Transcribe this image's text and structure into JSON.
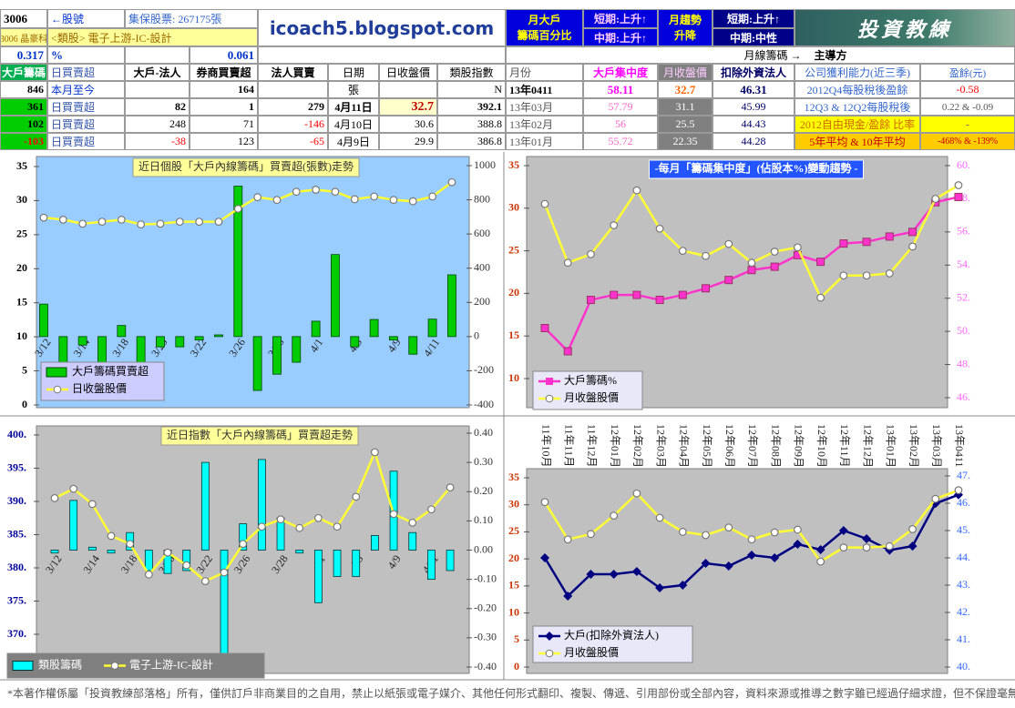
{
  "header": {
    "stock_code": "3006",
    "code_label": "←股號",
    "shares": "集保股票: 267175張",
    "name": "3006 晶豪科",
    "sector": "<類股> 電子上游-IC-設計",
    "pct1": "0.317",
    "pct_unit": "%",
    "pct2": "0.061",
    "site": "icoach5.blogspot.com",
    "monthly_label": [
      "月大戶",
      "籌碼百分比"
    ],
    "short1": "短期:上升↑",
    "mid1": "中期:上升↑",
    "trend_label": [
      "月趨勢",
      "升降"
    ],
    "short2": "短期:上升↑",
    "mid2": "中期:中性",
    "logo": "投資教練",
    "monthly_chip": "月線籌碼 →",
    "leader": "主導方"
  },
  "table": {
    "rows": [
      [
        "大戶籌碼",
        "日買賣超",
        "大戶-法人",
        "券商買賣超",
        "法人買賣",
        "日期",
        "日收盤價",
        "類股指數",
        "月份",
        "大戶集中度",
        "月收盤價",
        "扣除外資法人",
        "公司獲利能力(近三季)",
        "盈餘(元)"
      ],
      [
        "846",
        "本月至今",
        "",
        "164",
        "",
        "張",
        "",
        "N",
        "13年0411",
        "58.11",
        "32.7",
        "46.31",
        "2012Q4每股稅後盈餘",
        "-0.58"
      ],
      [
        "361",
        "日買賣超",
        "82",
        "1",
        "279",
        "4月11日",
        "32.7",
        "392.1",
        "13年03月",
        "57.79",
        "31.1",
        "45.99",
        "12Q3 & 12Q2每股稅後",
        "0.22 & -0.09"
      ],
      [
        "102",
        "日買賣超",
        "248",
        "71",
        "-146",
        "4月10日",
        "30.6",
        "388.8",
        "13年02月",
        "56",
        "25.5",
        "44.43",
        "2012自由現金/盈餘 比率",
        "-"
      ],
      [
        "-103",
        "日買賣超",
        "-38",
        "123",
        "-65",
        "4月9日",
        "29.9",
        "386.8",
        "13年01月",
        "55.72",
        "22.35",
        "44.28",
        "5年平均 & 10年平均",
        "-468% & -139%"
      ]
    ]
  },
  "chart_data": [
    {
      "type": "combo",
      "title": "近日個股「大戶內線籌碼」買賣超(張數)走勢",
      "categories": [
        "3/12",
        null,
        "3/14",
        null,
        "3/18",
        null,
        "3/20",
        null,
        "3/22",
        null,
        "3/26",
        null,
        "3/28",
        null,
        "4/1",
        null,
        "4/3",
        null,
        "4/9",
        null,
        "4/11",
        null
      ],
      "ylim": [
        0,
        35
      ],
      "yticks": [
        0,
        5,
        10,
        15,
        20,
        25,
        30,
        35
      ],
      "y2lim": [
        -400,
        1000
      ],
      "y2ticks": [
        -400,
        -200,
        0,
        200,
        400,
        600,
        800,
        1000
      ],
      "series": [
        {
          "name": "大戶籌碼買賣超",
          "color": "#00cc00",
          "kind": "bar",
          "axis": "y2",
          "values": [
            190,
            -165,
            -50,
            -150,
            65,
            -155,
            -60,
            -60,
            -20,
            10,
            880,
            -315,
            -220,
            -150,
            90,
            480,
            -60,
            100,
            -20,
            -103,
            102,
            361
          ]
        },
        {
          "name": "日收盤股價",
          "color": "#ffff33",
          "kind": "line",
          "marker": "circle",
          "values": [
            27.5,
            27.2,
            26.6,
            26.9,
            27.2,
            26.5,
            26.6,
            26.9,
            26.9,
            26.9,
            28.8,
            30.5,
            30.1,
            31.3,
            31.6,
            31.3,
            30.2,
            30.6,
            30.1,
            29.9,
            30.6,
            32.7
          ]
        }
      ]
    },
    {
      "type": "line",
      "title": "-每月「籌碼集中度」(佔股本%)變動趨勢 -",
      "ylim": [
        10,
        35
      ],
      "yticks": [
        10,
        15,
        20,
        25,
        30,
        35
      ],
      "y2lim": [
        46,
        60
      ],
      "y2ticks": [
        {
          "value": 46,
          "label": "46."
        },
        {
          "value": 48,
          "label": "48."
        },
        {
          "value": 50,
          "label": "50."
        },
        {
          "value": 52,
          "label": "52."
        },
        {
          "value": 54,
          "label": "54."
        },
        {
          "value": 56,
          "label": "56."
        },
        {
          "value": 58,
          "label": "58."
        },
        {
          "value": 60,
          "label": "60."
        }
      ],
      "series": [
        {
          "name": "大戶籌碼%",
          "color": "#ff33cc",
          "kind": "line",
          "marker": "square",
          "axis": "y2",
          "values": [
            50.2,
            48.8,
            51.9,
            52.2,
            52.2,
            51.9,
            52.2,
            52.6,
            53.1,
            53.7,
            53.9,
            54.6,
            54.2,
            55.3,
            55.4,
            55.72,
            56,
            57.79,
            58.11
          ]
        },
        {
          "name": "月收盤股價",
          "color": "#ffff33",
          "kind": "line",
          "marker": "circle",
          "values": [
            30.5,
            23.6,
            24.6,
            28.0,
            32.1,
            27.6,
            25.0,
            24.4,
            25.8,
            23.6,
            24.9,
            25.4,
            19.5,
            22.1,
            22.1,
            22.35,
            25.5,
            31.1,
            32.7
          ]
        }
      ]
    },
    {
      "type": "combo",
      "title": "近日指數「大戶內線籌碼」買賣超走勢",
      "categories": [
        "3/12",
        null,
        "3/14",
        null,
        "3/18",
        null,
        "3/20",
        null,
        "3/22",
        null,
        "3/26",
        null,
        "3/28",
        null,
        "4/1",
        null,
        "4/3",
        null,
        "4/9",
        null,
        "4/11",
        null
      ],
      "ylim": [
        370,
        400
      ],
      "yticks": [
        {
          "value": 370,
          "label": "370."
        },
        {
          "value": 375,
          "label": "375."
        },
        {
          "value": 380,
          "label": "380."
        },
        {
          "value": 385,
          "label": "385."
        },
        {
          "value": 390,
          "label": "390."
        },
        {
          "value": 395,
          "label": "395."
        },
        {
          "value": 400,
          "label": "400."
        }
      ],
      "y2lim": [
        -0.4,
        0.4
      ],
      "y2ticks": [
        {
          "value": -0.4,
          "label": "-0.40"
        },
        {
          "value": -0.3,
          "label": "-0.30"
        },
        {
          "value": -0.2,
          "label": "-0.20"
        },
        {
          "value": -0.1,
          "label": "-0.10"
        },
        {
          "value": 0,
          "label": "0.00"
        },
        {
          "value": 0.1,
          "label": "0.10"
        },
        {
          "value": 0.2,
          "label": "0.20"
        },
        {
          "value": 0.3,
          "label": "0.30"
        },
        {
          "value": 0.4,
          "label": "0.40"
        }
      ],
      "series": [
        {
          "name": "類股籌碼",
          "color": "#00ffff",
          "kind": "bar",
          "axis": "y2",
          "values": [
            -0.01,
            0.17,
            0.01,
            -0.01,
            0.06,
            -0.07,
            -0.08,
            -0.07,
            0.3,
            -0.38,
            0.09,
            0.31,
            0.11,
            -0.01,
            -0.18,
            -0.09,
            -0.09,
            0.05,
            0.27,
            0.06,
            -0.1,
            -0.07
          ]
        },
        {
          "name": "電子上游-IC-設計",
          "color": "#ffff33",
          "kind": "line",
          "marker": "circle",
          "values": [
            390.5,
            391.9,
            389.6,
            384.8,
            383.6,
            379.0,
            382.3,
            380.4,
            378.0,
            379.3,
            383.6,
            386.2,
            387.3,
            386.0,
            387.5,
            386.2,
            390.7,
            397.4,
            388.1,
            386.8,
            388.8,
            392.1
          ]
        }
      ]
    },
    {
      "type": "line",
      "categories": [
        "11年10月",
        "11年11月",
        "11年12月",
        "12年01月",
        "12年02月",
        "12年03月",
        "12年04月",
        "12年05月",
        "12年06月",
        "12年07月",
        "12年08月",
        "12年09月",
        "12年10月",
        "12年11月",
        "12年12月",
        "13年01月",
        "13年02月",
        "13年03月",
        "13年0411"
      ],
      "ylim": [
        0,
        35
      ],
      "yticks": [
        0,
        5,
        10,
        15,
        20,
        25,
        30,
        35
      ],
      "y2lim": [
        40,
        47
      ],
      "y2ticks": [
        {
          "value": 40,
          "label": "40."
        },
        {
          "value": 41,
          "label": "41."
        },
        {
          "value": 42,
          "label": "42."
        },
        {
          "value": 43,
          "label": "43."
        },
        {
          "value": 44,
          "label": "44."
        },
        {
          "value": 45,
          "label": "45."
        },
        {
          "value": 46,
          "label": "46."
        },
        {
          "value": 47,
          "label": "47."
        }
      ],
      "series": [
        {
          "name": "大戶(扣除外資法人)",
          "color": "#000080",
          "kind": "line",
          "marker": "diamond",
          "axis": "y2",
          "values": [
            44.0,
            42.6,
            43.4,
            43.4,
            43.5,
            42.9,
            43.0,
            43.8,
            43.7,
            44.1,
            44.0,
            44.5,
            44.3,
            45.0,
            44.7,
            44.28,
            44.43,
            45.99,
            46.31
          ]
        },
        {
          "name": "月收盤股價",
          "color": "#ffff33",
          "kind": "line",
          "marker": "circle",
          "values": [
            30.5,
            23.6,
            24.6,
            28.0,
            32.1,
            27.6,
            25.0,
            24.4,
            25.8,
            23.6,
            24.9,
            25.4,
            19.5,
            22.1,
            22.1,
            22.35,
            25.5,
            31.1,
            32.7
          ]
        }
      ]
    }
  ],
  "footer": "*本著作權係屬「投資教練部落格」所有，僅供訂戶非商業目的之自用，禁止以紙張或電子媒介、其他任何形式翻印、複製、傳遞、引用部份或全部內容，資料來源或推導之數字雖已經過仔細求證，但不保證毫無錯誤。"
}
